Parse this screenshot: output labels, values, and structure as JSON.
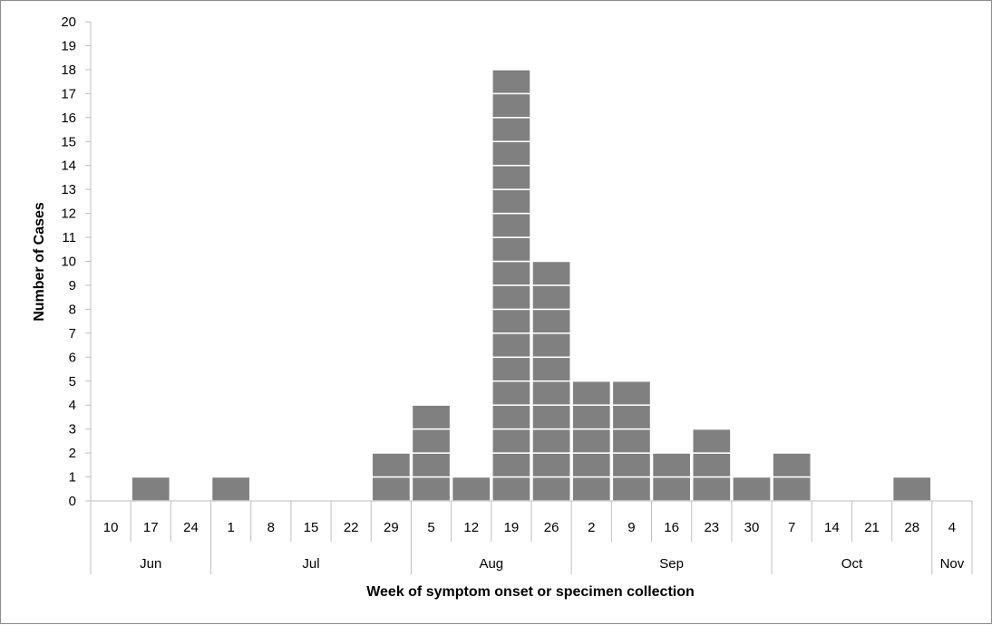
{
  "chart_data": {
    "type": "bar",
    "style": "stacked-unit-boxes",
    "xlabel": "Week of symptom onset or specimen collection",
    "ylabel": "Number of Cases",
    "ylim": [
      0,
      20
    ],
    "y_ticks": [
      0,
      1,
      2,
      3,
      4,
      5,
      6,
      7,
      8,
      9,
      10,
      11,
      12,
      13,
      14,
      15,
      16,
      17,
      18,
      19,
      20
    ],
    "grid": false,
    "categories": [
      "10",
      "17",
      "24",
      "1",
      "8",
      "15",
      "22",
      "29",
      "5",
      "12",
      "19",
      "26",
      "2",
      "9",
      "16",
      "23",
      "30",
      "7",
      "14",
      "21",
      "28",
      "4"
    ],
    "values": [
      0,
      1,
      0,
      1,
      0,
      0,
      0,
      2,
      4,
      1,
      18,
      10,
      5,
      5,
      2,
      3,
      1,
      2,
      0,
      0,
      1,
      0
    ],
    "month_groups": [
      {
        "label": "Jun",
        "start": 0,
        "count": 3
      },
      {
        "label": "Jul",
        "start": 3,
        "count": 5
      },
      {
        "label": "Aug",
        "start": 8,
        "count": 4
      },
      {
        "label": "Sep",
        "start": 12,
        "count": 5
      },
      {
        "label": "Oct",
        "start": 17,
        "count": 4
      },
      {
        "label": "Nov",
        "start": 21,
        "count": 1
      }
    ],
    "bar_color": "#808080",
    "box_line_color": "#ffffff",
    "axis_color": "#bfbfbf"
  }
}
